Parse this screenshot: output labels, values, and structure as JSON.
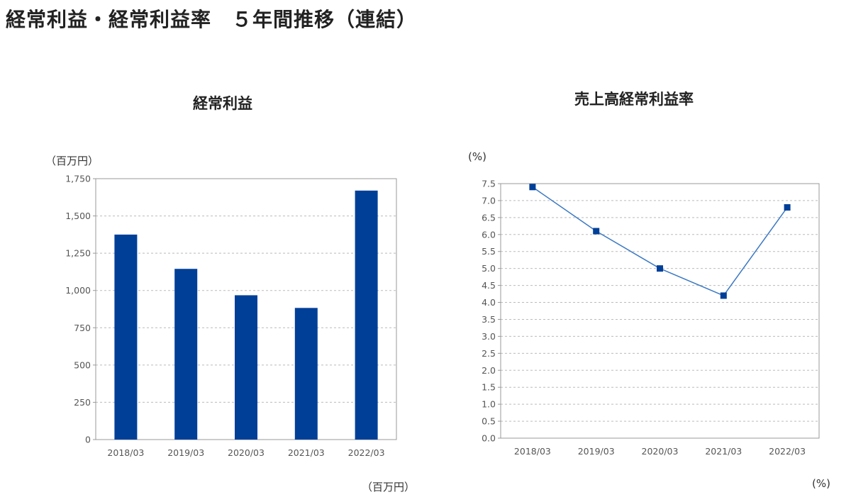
{
  "page_title": "経常利益・経常利益率　５年間推移（連結）",
  "chart_data": [
    {
      "type": "bar",
      "title": "経常利益",
      "unit_top": "（百万円）",
      "unit_bottom": "（百万円）",
      "categories": [
        "2018/03",
        "2019/03",
        "2020/03",
        "2021/03",
        "2022/03"
      ],
      "values": [
        1375,
        1145,
        968,
        883,
        1670
      ],
      "ylim": [
        0,
        1750
      ],
      "yticks": [
        0,
        250,
        500,
        750,
        1000,
        1250,
        1500,
        1750
      ],
      "ytick_labels": [
        "0",
        "250",
        "500",
        "750",
        "1,000",
        "1,250",
        "1,500",
        "1,750"
      ],
      "grid": true,
      "color": "#003f98"
    },
    {
      "type": "line",
      "title": "売上高経常利益率",
      "unit_top": "(%)",
      "unit_bottom": "(%)",
      "categories": [
        "2018/03",
        "2019/03",
        "2020/03",
        "2021/03",
        "2022/03"
      ],
      "values": [
        7.4,
        6.1,
        5.0,
        4.2,
        6.8
      ],
      "ylim": [
        0,
        7.5
      ],
      "yticks": [
        0.0,
        0.5,
        1.0,
        1.5,
        2.0,
        2.5,
        3.0,
        3.5,
        4.0,
        4.5,
        5.0,
        5.5,
        6.0,
        6.5,
        7.0,
        7.5
      ],
      "ytick_labels": [
        "0.0",
        "0.5",
        "1.0",
        "1.5",
        "2.0",
        "2.5",
        "3.0",
        "3.5",
        "4.0",
        "4.5",
        "5.0",
        "5.5",
        "6.0",
        "6.5",
        "7.0",
        "7.5"
      ],
      "grid": true,
      "line_color": "#3a78c3",
      "marker_color": "#003f98"
    }
  ]
}
